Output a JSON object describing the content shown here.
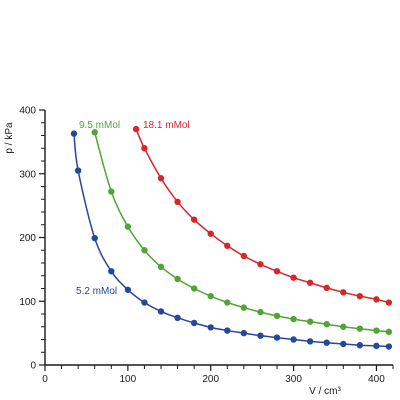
{
  "chart_data": {
    "type": "line",
    "xlabel": "V / cm³",
    "ylabel": "p / kPa",
    "xlim": [
      0,
      420
    ],
    "ylim": [
      0,
      400
    ],
    "x_ticks": [
      0,
      100,
      200,
      300,
      400
    ],
    "y_ticks": [
      0,
      100,
      200,
      300,
      400
    ],
    "x_tick_labels": [
      "0",
      "100",
      "200",
      "300",
      "400"
    ],
    "y_tick_labels": [
      "0",
      "100",
      "200",
      "300",
      "400"
    ],
    "grid": false,
    "legend": "none",
    "series": [
      {
        "name": "5.2 mMol",
        "color": "#27479a",
        "x": [
          35,
          40,
          60,
          80,
          100,
          120,
          140,
          160,
          180,
          200,
          220,
          240,
          260,
          280,
          300,
          320,
          340,
          360,
          380,
          400,
          415
        ],
        "y": [
          363,
          305,
          199,
          147,
          118,
          98,
          84,
          74,
          66,
          59,
          54,
          50,
          46,
          43,
          40,
          37,
          35,
          33,
          31,
          30,
          29
        ]
      },
      {
        "name": "9.5 mMol",
        "color": "#52a535",
        "x": [
          60,
          80,
          100,
          120,
          140,
          160,
          180,
          200,
          220,
          240,
          260,
          280,
          300,
          320,
          340,
          360,
          380,
          400,
          415
        ],
        "y": [
          365,
          272,
          217,
          180,
          154,
          135,
          120,
          108,
          98,
          90,
          83,
          77,
          72,
          68,
          64,
          60,
          57,
          54,
          52
        ]
      },
      {
        "name": "18.1 mMol",
        "color": "#d8262b",
        "x": [
          110,
          120,
          140,
          160,
          180,
          200,
          220,
          240,
          260,
          280,
          300,
          320,
          340,
          360,
          380,
          400,
          415
        ],
        "y": [
          370,
          340,
          293,
          256,
          228,
          206,
          187,
          171,
          158,
          147,
          137,
          129,
          121,
          114,
          108,
          103,
          98
        ]
      }
    ]
  }
}
